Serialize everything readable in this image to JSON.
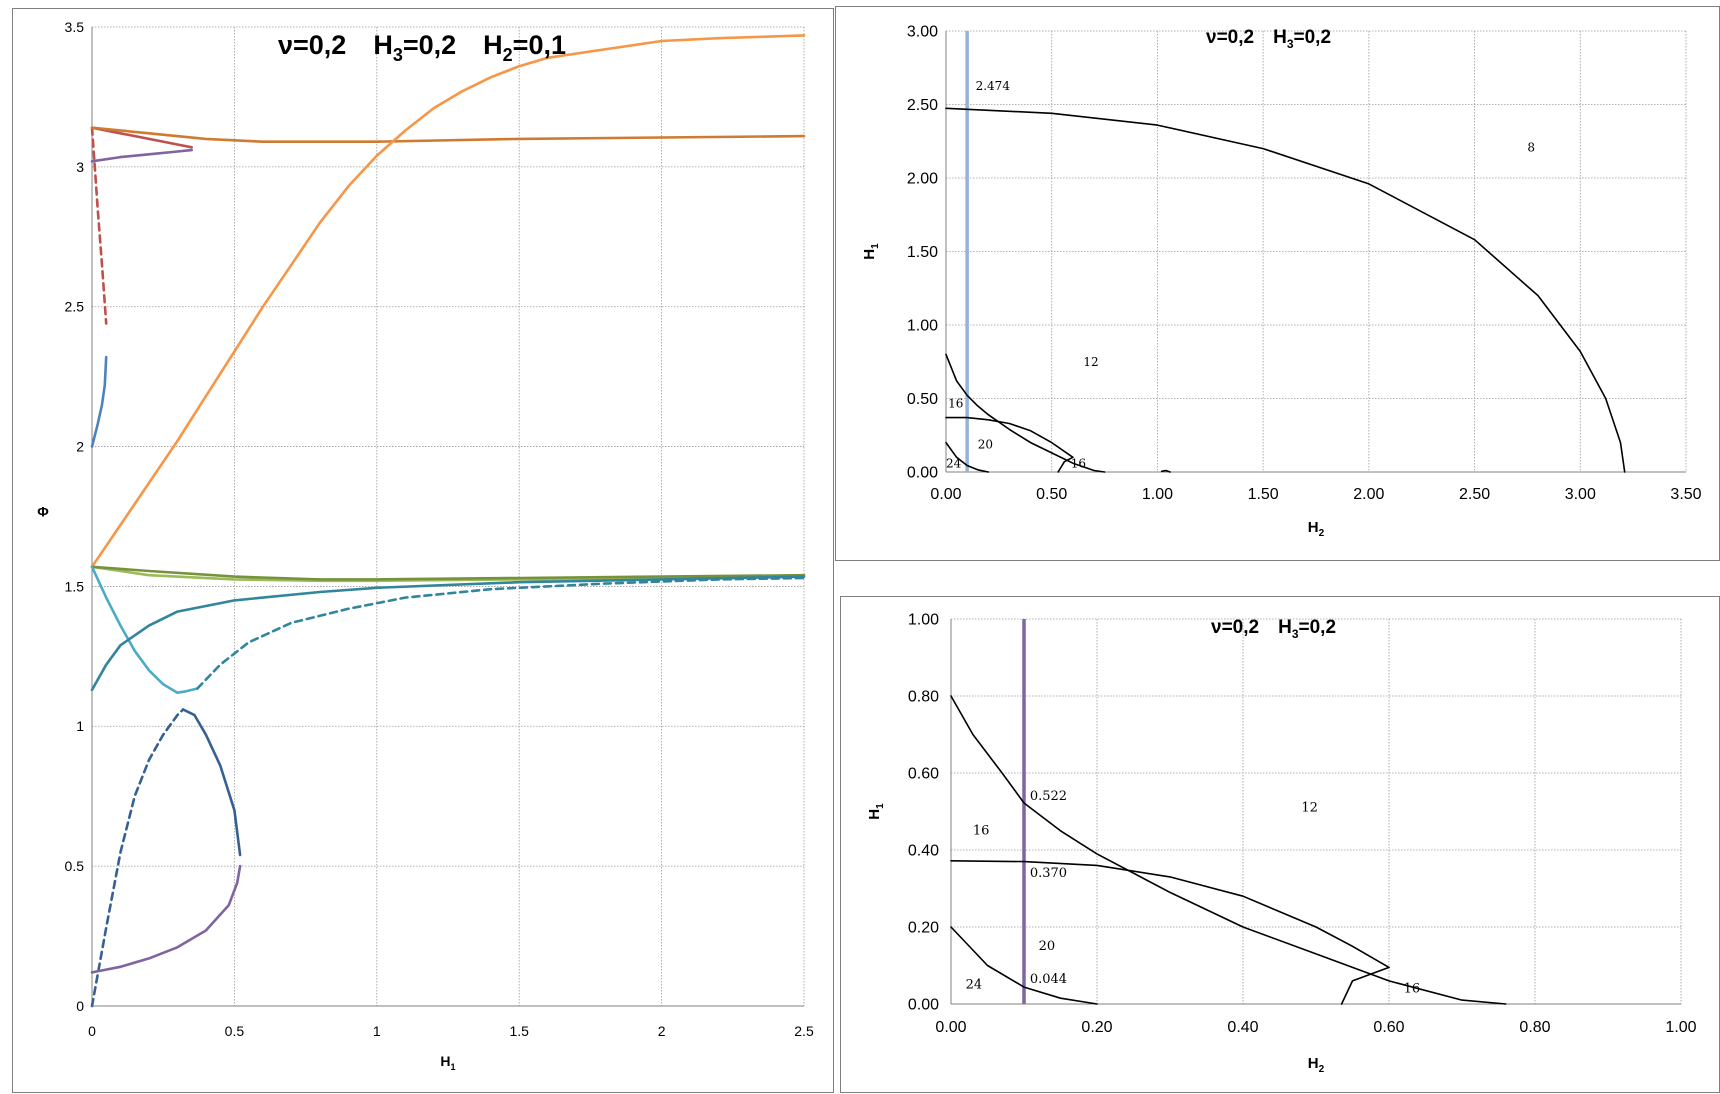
{
  "chart_data": [
    {
      "id": "left",
      "type": "line",
      "title": {
        "nu": "ν=0,2",
        "h3": "H",
        "h3_sub": "3",
        "h3_val": "=0,2",
        "h2": "H",
        "h2_sub": "2",
        "h2_val": "=0,1"
      },
      "xlabel": {
        "main": "H",
        "sub": "1"
      },
      "ylabel": "Φ",
      "xlim": [
        0,
        2.5
      ],
      "ylim": [
        0,
        3.5
      ],
      "xticks": [
        "0",
        "0.5",
        "1",
        "1.5",
        "2",
        "2.5"
      ],
      "yticks": [
        "0",
        "0.5",
        "1",
        "1.5",
        "2",
        "2.5",
        "3",
        "3.5"
      ],
      "grid": true,
      "series": [
        {
          "color": "#c0504d",
          "dash": true,
          "points": [
            [
              0.0,
              3.14
            ],
            [
              0.01,
              3.0
            ],
            [
              0.02,
              2.85
            ],
            [
              0.035,
              2.65
            ],
            [
              0.05,
              2.44
            ]
          ]
        },
        {
          "color": "#c0504d",
          "dash": false,
          "points": [
            [
              0.0,
              3.14
            ],
            [
              0.1,
              3.12
            ],
            [
              0.2,
              3.1
            ],
            [
              0.3,
              3.08
            ],
            [
              0.35,
              3.07
            ]
          ]
        },
        {
          "color": "#8064a2",
          "dash": false,
          "points": [
            [
              0.0,
              3.02
            ],
            [
              0.1,
              3.035
            ],
            [
              0.2,
              3.045
            ],
            [
              0.3,
              3.055
            ],
            [
              0.35,
              3.06
            ]
          ]
        },
        {
          "color": "#4f81bd",
          "dash": false,
          "points": [
            [
              0.0,
              2.0
            ],
            [
              0.02,
              2.08
            ],
            [
              0.035,
              2.15
            ],
            [
              0.045,
              2.22
            ],
            [
              0.05,
              2.32
            ]
          ]
        },
        {
          "color": "#d07a30",
          "dash": false,
          "points": [
            [
              0.0,
              3.14
            ],
            [
              0.2,
              3.12
            ],
            [
              0.4,
              3.1
            ],
            [
              0.6,
              3.09
            ],
            [
              0.8,
              3.09
            ],
            [
              1.0,
              3.09
            ],
            [
              1.5,
              3.1
            ],
            [
              2.0,
              3.105
            ],
            [
              2.5,
              3.11
            ]
          ]
        },
        {
          "color": "#f79646",
          "dash": false,
          "points": [
            [
              0.0,
              1.57
            ],
            [
              0.1,
              1.72
            ],
            [
              0.2,
              1.87
            ],
            [
              0.3,
              2.02
            ],
            [
              0.4,
              2.18
            ],
            [
              0.5,
              2.34
            ],
            [
              0.6,
              2.5
            ],
            [
              0.7,
              2.65
            ],
            [
              0.8,
              2.8
            ],
            [
              0.9,
              2.93
            ],
            [
              1.0,
              3.04
            ],
            [
              1.1,
              3.13
            ],
            [
              1.2,
              3.21
            ],
            [
              1.3,
              3.27
            ],
            [
              1.4,
              3.32
            ],
            [
              1.5,
              3.36
            ],
            [
              1.6,
              3.39
            ],
            [
              1.8,
              3.42
            ],
            [
              2.0,
              3.45
            ],
            [
              2.2,
              3.46
            ],
            [
              2.5,
              3.47
            ]
          ]
        },
        {
          "color": "#9bbb59",
          "dash": false,
          "points": [
            [
              0.0,
              1.57
            ],
            [
              0.2,
              1.54
            ],
            [
              0.5,
              1.525
            ],
            [
              0.8,
              1.52
            ],
            [
              1.0,
              1.52
            ],
            [
              1.5,
              1.525
            ],
            [
              2.0,
              1.53
            ],
            [
              2.5,
              1.535
            ]
          ]
        },
        {
          "color": "#76923c",
          "dash": false,
          "points": [
            [
              0.0,
              1.57
            ],
            [
              0.2,
              1.555
            ],
            [
              0.5,
              1.535
            ],
            [
              0.8,
              1.525
            ],
            [
              1.0,
              1.525
            ],
            [
              1.5,
              1.53
            ],
            [
              2.0,
              1.535
            ],
            [
              2.5,
              1.54
            ]
          ]
        },
        {
          "color": "#4bacc6",
          "dash": false,
          "points": [
            [
              0.0,
              1.57
            ],
            [
              0.05,
              1.46
            ],
            [
              0.1,
              1.36
            ],
            [
              0.15,
              1.27
            ],
            [
              0.2,
              1.2
            ],
            [
              0.25,
              1.15
            ],
            [
              0.3,
              1.12
            ]
          ]
        },
        {
          "color": "#4bacc6",
          "dash": false,
          "points": [
            [
              0.3,
              1.12
            ],
            [
              0.33,
              1.125
            ],
            [
              0.37,
              1.135
            ]
          ]
        },
        {
          "color": "#31859c",
          "dash": false,
          "points": [
            [
              0.0,
              1.13
            ],
            [
              0.05,
              1.22
            ],
            [
              0.1,
              1.29
            ],
            [
              0.2,
              1.36
            ],
            [
              0.3,
              1.41
            ],
            [
              0.5,
              1.45
            ],
            [
              0.8,
              1.48
            ],
            [
              1.0,
              1.495
            ],
            [
              1.5,
              1.515
            ],
            [
              2.0,
              1.525
            ],
            [
              2.5,
              1.535
            ]
          ]
        },
        {
          "color": "#31859c",
          "dash": true,
          "points": [
            [
              0.37,
              1.135
            ],
            [
              0.45,
              1.22
            ],
            [
              0.55,
              1.3
            ],
            [
              0.7,
              1.37
            ],
            [
              0.9,
              1.42
            ],
            [
              1.1,
              1.46
            ],
            [
              1.4,
              1.49
            ],
            [
              1.8,
              1.51
            ],
            [
              2.2,
              1.525
            ],
            [
              2.5,
              1.53
            ]
          ]
        },
        {
          "color": "#366092",
          "dash": true,
          "points": [
            [
              0.0,
              0.0
            ],
            [
              0.05,
              0.28
            ],
            [
              0.1,
              0.55
            ],
            [
              0.15,
              0.75
            ],
            [
              0.2,
              0.88
            ],
            [
              0.25,
              0.97
            ],
            [
              0.3,
              1.04
            ],
            [
              0.32,
              1.06
            ]
          ]
        },
        {
          "color": "#366092",
          "dash": false,
          "points": [
            [
              0.32,
              1.06
            ],
            [
              0.36,
              1.04
            ],
            [
              0.4,
              0.97
            ],
            [
              0.45,
              0.86
            ],
            [
              0.5,
              0.7
            ],
            [
              0.52,
              0.54
            ]
          ]
        },
        {
          "color": "#8064a2",
          "dash": false,
          "points": [
            [
              0.0,
              0.12
            ],
            [
              0.1,
              0.14
            ],
            [
              0.2,
              0.17
            ],
            [
              0.3,
              0.21
            ],
            [
              0.4,
              0.27
            ],
            [
              0.48,
              0.36
            ],
            [
              0.51,
              0.44
            ],
            [
              0.52,
              0.5
            ]
          ]
        }
      ]
    },
    {
      "id": "top-right",
      "type": "line",
      "title": {
        "nu": "ν=0,2",
        "h3": "H",
        "h3_sub": "3",
        "h3_val": "=0,2"
      },
      "xlabel": {
        "main": "H",
        "sub": "2"
      },
      "ylabel": {
        "main": "H",
        "sub": "1"
      },
      "xlim": [
        0,
        3.5
      ],
      "ylim": [
        0,
        3.0
      ],
      "xticks": [
        "0.00",
        "0.50",
        "1.00",
        "1.50",
        "2.00",
        "2.50",
        "3.00",
        "3.50"
      ],
      "yticks": [
        "0.00",
        "0.50",
        "1.00",
        "1.50",
        "2.00",
        "2.50",
        "3.00"
      ],
      "grid": true,
      "vline": {
        "x": 0.1,
        "color": "#95b3d7"
      },
      "series": [
        {
          "color": "#000000",
          "dash": false,
          "points": [
            [
              0.0,
              2.474
            ],
            [
              0.5,
              2.44
            ],
            [
              1.0,
              2.36
            ],
            [
              1.5,
              2.2
            ],
            [
              2.0,
              1.96
            ],
            [
              2.5,
              1.58
            ],
            [
              2.8,
              1.2
            ],
            [
              3.0,
              0.82
            ],
            [
              3.12,
              0.5
            ],
            [
              3.19,
              0.2
            ],
            [
              3.21,
              0.0
            ]
          ]
        },
        {
          "color": "#000000",
          "dash": false,
          "points": [
            [
              0.0,
              0.8
            ],
            [
              0.05,
              0.62
            ],
            [
              0.1,
              0.522
            ],
            [
              0.15,
              0.45
            ],
            [
              0.2,
              0.39
            ],
            [
              0.3,
              0.29
            ],
            [
              0.4,
              0.2
            ],
            [
              0.5,
              0.13
            ],
            [
              0.6,
              0.06
            ],
            [
              0.7,
              0.01
            ],
            [
              0.75,
              0.0
            ]
          ]
        },
        {
          "color": "#000000",
          "dash": false,
          "points": [
            [
              0.0,
              0.37
            ],
            [
              0.1,
              0.37
            ],
            [
              0.2,
              0.355
            ],
            [
              0.3,
              0.33
            ],
            [
              0.4,
              0.28
            ],
            [
              0.5,
              0.2
            ],
            [
              0.6,
              0.1
            ]
          ]
        },
        {
          "color": "#000000",
          "dash": false,
          "points": [
            [
              0.0,
              0.2
            ],
            [
              0.05,
              0.1
            ],
            [
              0.1,
              0.044
            ],
            [
              0.15,
              0.015
            ],
            [
              0.2,
              0.0
            ]
          ]
        },
        {
          "color": "#000000",
          "dash": false,
          "points": [
            [
              0.53,
              0.0
            ],
            [
              0.56,
              0.07
            ],
            [
              0.6,
              0.1
            ]
          ]
        },
        {
          "color": "#000000",
          "dash": false,
          "points": [
            [
              1.02,
              0.005
            ],
            [
              1.04,
              0.01
            ],
            [
              1.06,
              0.0
            ]
          ]
        }
      ],
      "labels": [
        {
          "text": "2.474",
          "x": 0.14,
          "y": 2.6
        },
        {
          "text": "8",
          "x": 2.75,
          "y": 2.18
        },
        {
          "text": "12",
          "x": 0.65,
          "y": 0.72
        },
        {
          "text": "16",
          "x": 0.01,
          "y": 0.44
        },
        {
          "text": "20",
          "x": 0.15,
          "y": 0.16
        },
        {
          "text": "24",
          "x": 0.0,
          "y": 0.03
        },
        {
          "text": "16",
          "x": 0.59,
          "y": 0.03
        }
      ]
    },
    {
      "id": "bottom-right",
      "type": "line",
      "title": {
        "nu": "ν=0,2",
        "h3": "H",
        "h3_sub": "3",
        "h3_val": "=0,2"
      },
      "xlabel": {
        "main": "H",
        "sub": "2"
      },
      "ylabel": {
        "main": "H",
        "sub": "1"
      },
      "xlim": [
        0,
        1.0
      ],
      "ylim": [
        0,
        1.0
      ],
      "xticks": [
        "0.00",
        "0.20",
        "0.40",
        "0.60",
        "0.80",
        "1.00"
      ],
      "yticks": [
        "0.00",
        "0.20",
        "0.40",
        "0.60",
        "0.80",
        "1.00"
      ],
      "grid": true,
      "vline": {
        "x": 0.1,
        "color": "#8064a2"
      },
      "series": [
        {
          "color": "#000000",
          "dash": false,
          "points": [
            [
              0.0,
              0.8
            ],
            [
              0.03,
              0.7
            ],
            [
              0.07,
              0.6
            ],
            [
              0.1,
              0.522
            ],
            [
              0.15,
              0.45
            ],
            [
              0.2,
              0.39
            ],
            [
              0.3,
              0.29
            ],
            [
              0.4,
              0.2
            ],
            [
              0.5,
              0.13
            ],
            [
              0.6,
              0.06
            ],
            [
              0.7,
              0.01
            ],
            [
              0.76,
              0.0
            ]
          ]
        },
        {
          "color": "#000000",
          "dash": false,
          "points": [
            [
              0.0,
              0.372
            ],
            [
              0.1,
              0.37
            ],
            [
              0.2,
              0.36
            ],
            [
              0.3,
              0.33
            ],
            [
              0.4,
              0.28
            ],
            [
              0.5,
              0.2
            ],
            [
              0.55,
              0.15
            ],
            [
              0.6,
              0.095
            ]
          ]
        },
        {
          "color": "#000000",
          "dash": false,
          "points": [
            [
              0.0,
              0.2
            ],
            [
              0.05,
              0.1
            ],
            [
              0.1,
              0.044
            ],
            [
              0.15,
              0.015
            ],
            [
              0.2,
              0.0
            ]
          ]
        },
        {
          "color": "#000000",
          "dash": false,
          "points": [
            [
              0.535,
              0.0
            ],
            [
              0.55,
              0.06
            ],
            [
              0.6,
              0.095
            ]
          ]
        }
      ],
      "labels": [
        {
          "text": "0.522",
          "x": 0.108,
          "y": 0.53
        },
        {
          "text": "0.370",
          "x": 0.108,
          "y": 0.33
        },
        {
          "text": "0.044",
          "x": 0.108,
          "y": 0.055
        },
        {
          "text": "12",
          "x": 0.48,
          "y": 0.5
        },
        {
          "text": "16",
          "x": 0.03,
          "y": 0.44
        },
        {
          "text": "20",
          "x": 0.12,
          "y": 0.14
        },
        {
          "text": "24",
          "x": 0.02,
          "y": 0.04
        },
        {
          "text": "16",
          "x": 0.62,
          "y": 0.03
        }
      ]
    }
  ]
}
